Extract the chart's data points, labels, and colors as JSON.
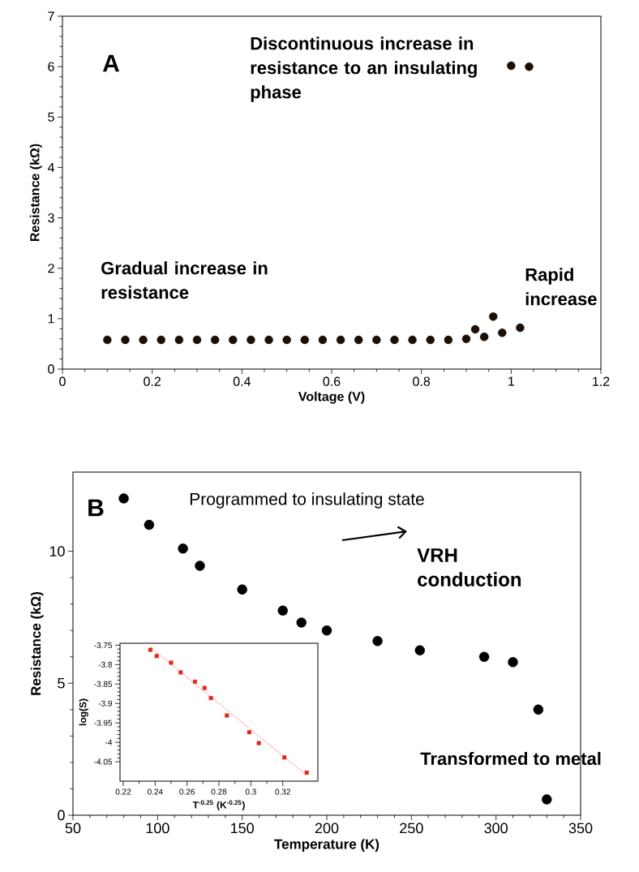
{
  "chart_data": [
    {
      "type": "scatter",
      "xlabel": "Voltage (V)",
      "ylabel": "Resistance (kΩ)",
      "xlim": [
        0,
        1.2
      ],
      "ylim": [
        0,
        7
      ],
      "xticks": [
        0,
        0.2,
        0.4,
        0.6,
        0.8,
        1,
        1.2
      ],
      "yticks": [
        0,
        1,
        2,
        3,
        4,
        5,
        6,
        7
      ],
      "marker": "circle",
      "annotations": [
        "A",
        "Gradual increase in resistance",
        "Rapid increase",
        "Discontinuous increase in resistance to an insulating phase"
      ],
      "series": [
        {
          "color": "#1a1008",
          "x": [
            0.1,
            0.14,
            0.18,
            0.22,
            0.26,
            0.3,
            0.34,
            0.38,
            0.42,
            0.46,
            0.5,
            0.54,
            0.58,
            0.62,
            0.66,
            0.7,
            0.74,
            0.78,
            0.82,
            0.86,
            0.9,
            0.92,
            0.94,
            0.96,
            0.98,
            1.0,
            1.02,
            1.04
          ],
          "values": [
            0.58,
            0.58,
            0.58,
            0.58,
            0.58,
            0.58,
            0.58,
            0.58,
            0.58,
            0.58,
            0.58,
            0.58,
            0.58,
            0.58,
            0.58,
            0.58,
            0.58,
            0.58,
            0.58,
            0.58,
            0.6,
            0.79,
            0.64,
            1.04,
            0.72,
            6.02,
            0.82,
            6.0
          ]
        }
      ]
    },
    {
      "type": "scatter",
      "xlabel": "Temperature (K)",
      "ylabel": "Resistance (kΩ)",
      "xlim": [
        50,
        350
      ],
      "ylim": [
        0,
        13
      ],
      "xticks": [
        50,
        100,
        150,
        200,
        250,
        300,
        350
      ],
      "yticks": [
        0,
        5,
        10
      ],
      "marker": "circle",
      "annotations": [
        "B",
        "Programmed to insulating state",
        "VRH conduction",
        "Transformed to metal"
      ],
      "series": [
        {
          "color": "#000000",
          "x": [
            80,
            95,
            115,
            125,
            150,
            174,
            185,
            200,
            230,
            255,
            293,
            310,
            325,
            330
          ],
          "values": [
            12.0,
            11.0,
            10.1,
            9.45,
            8.55,
            7.75,
            7.3,
            7.0,
            6.6,
            6.25,
            6.0,
            5.8,
            4.0,
            0.6
          ]
        }
      ]
    },
    {
      "type": "scatter",
      "xlabel": "T$^{-0.25}$ (K$^{-0.25}$)",
      "ylabel": "log(S)",
      "xlim": [
        0.218,
        0.342
      ],
      "ylim": [
        -4.1,
        -3.745
      ],
      "xticks": [
        0.22,
        0.24,
        0.26,
        0.28,
        0.3,
        0.32
      ],
      "yticks": [
        -4.05,
        -4,
        -3.95,
        -3.9,
        -3.85,
        -3.8,
        -3.75
      ],
      "marker": "square",
      "series": [
        {
          "color": "#e8231c",
          "x": [
            0.237,
            0.241,
            0.25,
            0.256,
            0.265,
            0.271,
            0.275,
            0.285,
            0.299,
            0.305,
            0.321,
            0.335
          ],
          "values": [
            -3.762,
            -3.778,
            -3.795,
            -3.82,
            -3.844,
            -3.86,
            -3.886,
            -3.931,
            -3.974,
            -4.002,
            -4.039,
            -4.078
          ]
        },
        {
          "type": "line",
          "marker": "none",
          "color": "#f29a9a",
          "x": [
            0.237,
            0.335
          ],
          "values": [
            -3.755,
            -4.085
          ]
        }
      ]
    }
  ]
}
